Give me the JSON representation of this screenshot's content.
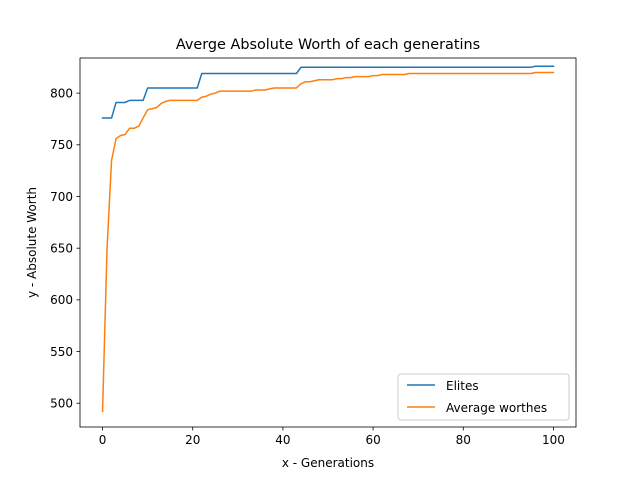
{
  "chart_data": {
    "type": "line",
    "title": "Averge Absolute Worth of each generatins",
    "xlabel": "x - Generations",
    "ylabel": "y - Absolute Worth",
    "xlim": [
      -5,
      105
    ],
    "ylim": [
      477,
      834
    ],
    "xticks": [
      0,
      20,
      40,
      60,
      80,
      100
    ],
    "yticks": [
      500,
      550,
      600,
      650,
      700,
      750,
      800
    ],
    "grid": false,
    "legend_position": "lower-right",
    "series": [
      {
        "name": "Elites",
        "color": "#1f77b4",
        "x": [
          0,
          1,
          2,
          3,
          4,
          5,
          6,
          7,
          8,
          9,
          10,
          11,
          12,
          13,
          14,
          15,
          16,
          17,
          18,
          19,
          20,
          21,
          22,
          23,
          24,
          25,
          26,
          27,
          28,
          29,
          30,
          31,
          32,
          33,
          34,
          35,
          36,
          37,
          38,
          39,
          40,
          41,
          42,
          43,
          44,
          45,
          46,
          47,
          48,
          49,
          50,
          51,
          52,
          53,
          54,
          55,
          56,
          57,
          58,
          59,
          60,
          61,
          62,
          63,
          64,
          65,
          66,
          67,
          68,
          69,
          70,
          71,
          72,
          73,
          74,
          75,
          76,
          77,
          78,
          79,
          80,
          81,
          82,
          83,
          84,
          85,
          86,
          87,
          88,
          89,
          90,
          91,
          92,
          93,
          94,
          95,
          96,
          97,
          98,
          99,
          100
        ],
        "y": [
          776,
          776,
          776,
          791,
          791,
          791,
          793,
          793,
          793,
          793,
          805,
          805,
          805,
          805,
          805,
          805,
          805,
          805,
          805,
          805,
          805,
          805,
          819,
          819,
          819,
          819,
          819,
          819,
          819,
          819,
          819,
          819,
          819,
          819,
          819,
          819,
          819,
          819,
          819,
          819,
          819,
          819,
          819,
          819,
          825,
          825,
          825,
          825,
          825,
          825,
          825,
          825,
          825,
          825,
          825,
          825,
          825,
          825,
          825,
          825,
          825,
          825,
          825,
          825,
          825,
          825,
          825,
          825,
          825,
          825,
          825,
          825,
          825,
          825,
          825,
          825,
          825,
          825,
          825,
          825,
          825,
          825,
          825,
          825,
          825,
          825,
          825,
          825,
          825,
          825,
          825,
          825,
          825,
          825,
          825,
          825,
          826,
          826,
          826,
          826,
          826
        ]
      },
      {
        "name": "Average worthes",
        "color": "#ff7f0e",
        "x": [
          0,
          1,
          2,
          3,
          4,
          5,
          6,
          7,
          8,
          9,
          10,
          11,
          12,
          13,
          14,
          15,
          16,
          17,
          18,
          19,
          20,
          21,
          22,
          23,
          24,
          25,
          26,
          27,
          28,
          29,
          30,
          31,
          32,
          33,
          34,
          35,
          36,
          37,
          38,
          39,
          40,
          41,
          42,
          43,
          44,
          45,
          46,
          47,
          48,
          49,
          50,
          51,
          52,
          53,
          54,
          55,
          56,
          57,
          58,
          59,
          60,
          61,
          62,
          63,
          64,
          65,
          66,
          67,
          68,
          69,
          70,
          71,
          72,
          73,
          74,
          75,
          76,
          77,
          78,
          79,
          80,
          81,
          82,
          83,
          84,
          85,
          86,
          87,
          88,
          89,
          90,
          91,
          92,
          93,
          94,
          95,
          96,
          97,
          98,
          99,
          100
        ],
        "y": [
          492,
          650,
          735,
          756,
          759,
          760,
          766,
          766,
          768,
          776,
          784,
          785,
          786,
          790,
          792,
          793,
          793,
          793,
          793,
          793,
          793,
          793,
          796,
          797,
          799,
          800,
          802,
          802,
          802,
          802,
          802,
          802,
          802,
          802,
          803,
          803,
          803,
          804,
          805,
          805,
          805,
          805,
          805,
          805,
          809,
          811,
          811,
          812,
          813,
          813,
          813,
          813,
          814,
          814,
          815,
          815,
          816,
          816,
          816,
          816,
          817,
          817,
          818,
          818,
          818,
          818,
          818,
          818,
          819,
          819,
          819,
          819,
          819,
          819,
          819,
          819,
          819,
          819,
          819,
          819,
          819,
          819,
          819,
          819,
          819,
          819,
          819,
          819,
          819,
          819,
          819,
          819,
          819,
          819,
          819,
          819,
          820,
          820,
          820,
          820,
          820
        ]
      }
    ]
  }
}
